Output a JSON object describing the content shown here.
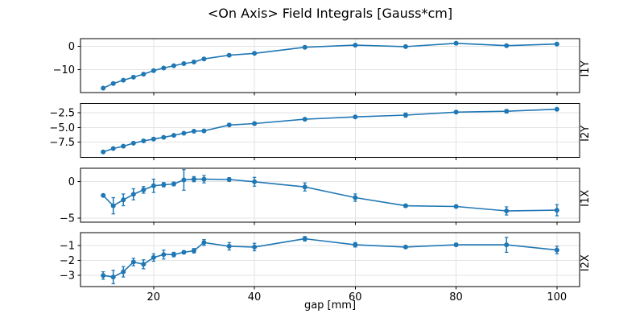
{
  "title": "<On Axis> Field Integrals [Gauss*cm]",
  "chart_data": {
    "type": "line",
    "title": "<On Axis> Field Integrals [Gauss*cm]",
    "xlabel": "gap [mm]",
    "x": [
      10,
      12,
      14,
      16,
      18,
      20,
      22,
      24,
      26,
      28,
      30,
      35,
      40,
      50,
      60,
      70,
      80,
      90,
      100
    ],
    "xlim": [
      5.5,
      104.5
    ],
    "xticks": [
      20,
      40,
      60,
      80,
      100
    ],
    "grid": true,
    "legend": "none",
    "line_color": "#1f77b4",
    "grid_color": "#e3e3e3",
    "marker": "circle",
    "error_bars": true,
    "subplots": [
      {
        "name": "I1Y",
        "values": [
          -17.9,
          -15.9,
          -14.5,
          -13.2,
          -11.9,
          -10.4,
          -9.3,
          -8.3,
          -7.4,
          -6.7,
          -5.4,
          -3.8,
          -3.0,
          -0.4,
          0.5,
          -0.1,
          1.3,
          0.3,
          1.0
        ],
        "errors": [
          0,
          0,
          0,
          0,
          0,
          0,
          0,
          0,
          0,
          0,
          0,
          0,
          0,
          0,
          0,
          0,
          0,
          0,
          0
        ],
        "ylim": [
          -19.8,
          3.3
        ],
        "yticks": [
          0,
          -10
        ],
        "ytick_labels": [
          "0",
          "−10"
        ]
      },
      {
        "name": "I2Y",
        "values": [
          -9.2,
          -8.6,
          -8.2,
          -7.7,
          -7.3,
          -7.0,
          -6.7,
          -6.35,
          -6.0,
          -5.65,
          -5.6,
          -4.6,
          -4.35,
          -3.6,
          -3.2,
          -2.9,
          -2.4,
          -2.25,
          -1.9
        ],
        "errors": [
          0.1,
          0.1,
          0.1,
          0.1,
          0.1,
          0.1,
          0.1,
          0.1,
          0.1,
          0.1,
          0.1,
          0.2,
          0.25,
          0.1,
          0.1,
          0.35,
          0.1,
          0.3,
          0.1
        ],
        "ylim": [
          -10.1,
          -0.9
        ],
        "yticks": [
          -2.5,
          -5.0,
          -7.5
        ],
        "ytick_labels": [
          "−2.5",
          "−5.0",
          "−7.5"
        ]
      },
      {
        "name": "I1X",
        "values": [
          -1.9,
          -3.3,
          -2.5,
          -1.75,
          -1.15,
          -0.6,
          -0.45,
          -0.35,
          0.2,
          0.3,
          0.3,
          0.25,
          -0.05,
          -0.75,
          -2.2,
          -3.3,
          -3.4,
          -4.0,
          -3.9
        ],
        "errors": [
          0.15,
          1.1,
          0.8,
          0.75,
          0.45,
          0.9,
          0.3,
          0.25,
          1.4,
          0.35,
          0.5,
          0.25,
          0.6,
          0.55,
          0.5,
          0.2,
          0.12,
          0.55,
          0.75
        ],
        "ylim": [
          -5.5,
          1.8
        ],
        "yticks": [
          0,
          -5
        ],
        "ytick_labels": [
          "0",
          "−5"
        ]
      },
      {
        "name": "I2X",
        "values": [
          -3.0,
          -3.1,
          -2.75,
          -2.1,
          -2.25,
          -1.8,
          -1.6,
          -1.6,
          -1.45,
          -1.35,
          -0.8,
          -1.05,
          -1.1,
          -0.55,
          -0.95,
          -1.1,
          -0.95,
          -0.95,
          -1.3
        ],
        "errors": [
          0.25,
          0.45,
          0.35,
          0.25,
          0.3,
          0.25,
          0.3,
          0.15,
          0.1,
          0.15,
          0.2,
          0.25,
          0.25,
          0.15,
          0.15,
          0.06,
          0.1,
          0.5,
          0.25
        ],
        "ylim": [
          -3.75,
          -0.15
        ],
        "yticks": [
          -1,
          -2,
          -3
        ],
        "ytick_labels": [
          "−1",
          "−2",
          "−3"
        ]
      }
    ]
  }
}
